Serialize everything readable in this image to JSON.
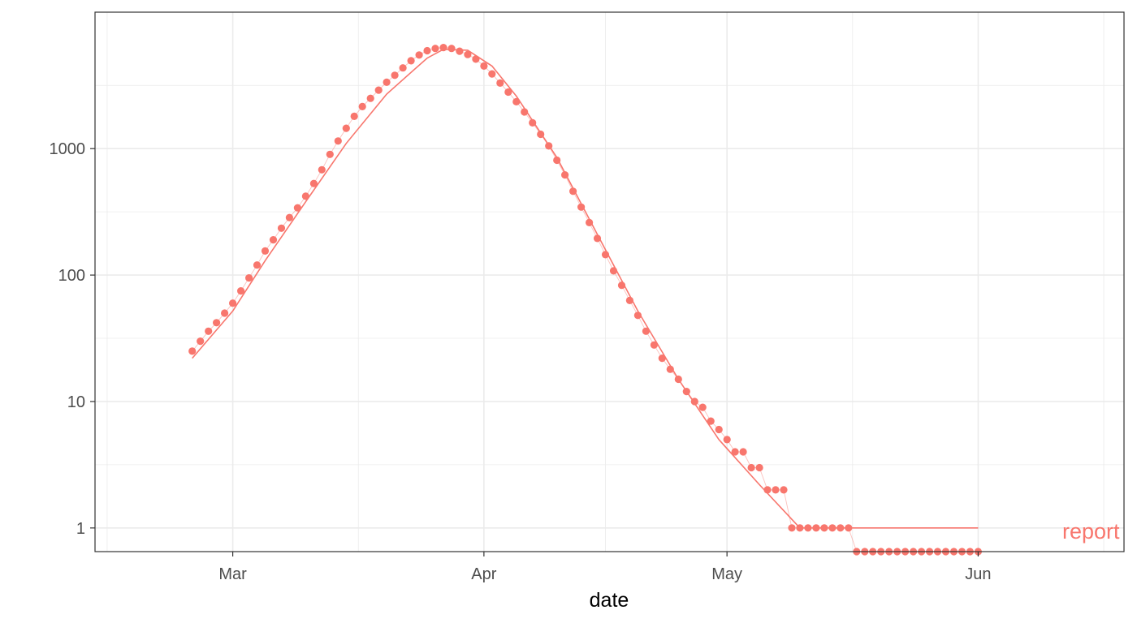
{
  "chart_data": {
    "type": "scatter",
    "xlabel": "date",
    "ylabel": "",
    "y_scale": "log10",
    "ylim": [
      0.65,
      12000
    ],
    "xlim": [
      "2020-02-13",
      "2020-06-19"
    ],
    "grid": true,
    "x_ticks": [
      {
        "date": "2020-03-01",
        "label": "Mar"
      },
      {
        "date": "2020-04-01",
        "label": "Apr"
      },
      {
        "date": "2020-05-01",
        "label": "May"
      },
      {
        "date": "2020-06-01",
        "label": "Jun"
      }
    ],
    "y_ticks": [
      {
        "value": 1,
        "label": "1"
      },
      {
        "value": 10,
        "label": "10"
      },
      {
        "value": 100,
        "label": "100"
      },
      {
        "value": 1000,
        "label": "1000"
      }
    ],
    "colors": {
      "series": "#f8766d",
      "grid": "#ebebeb",
      "panel_border": "#333333"
    },
    "series": [
      {
        "name": "report",
        "points": [
          [
            "2020-02-25",
            25
          ],
          [
            "2020-02-26",
            30
          ],
          [
            "2020-02-27",
            36
          ],
          [
            "2020-02-28",
            42
          ],
          [
            "2020-02-29",
            50
          ],
          [
            "2020-03-01",
            60
          ],
          [
            "2020-03-02",
            75
          ],
          [
            "2020-03-03",
            95
          ],
          [
            "2020-03-04",
            120
          ],
          [
            "2020-03-05",
            155
          ],
          [
            "2020-03-06",
            190
          ],
          [
            "2020-03-07",
            235
          ],
          [
            "2020-03-08",
            285
          ],
          [
            "2020-03-09",
            340
          ],
          [
            "2020-03-10",
            420
          ],
          [
            "2020-03-11",
            530
          ],
          [
            "2020-03-12",
            680
          ],
          [
            "2020-03-13",
            900
          ],
          [
            "2020-03-14",
            1150
          ],
          [
            "2020-03-15",
            1450
          ],
          [
            "2020-03-16",
            1800
          ],
          [
            "2020-03-17",
            2150
          ],
          [
            "2020-03-18",
            2500
          ],
          [
            "2020-03-19",
            2900
          ],
          [
            "2020-03-20",
            3350
          ],
          [
            "2020-03-21",
            3800
          ],
          [
            "2020-03-22",
            4350
          ],
          [
            "2020-03-23",
            4950
          ],
          [
            "2020-03-24",
            5500
          ],
          [
            "2020-03-25",
            5950
          ],
          [
            "2020-03-26",
            6200
          ],
          [
            "2020-03-27",
            6300
          ],
          [
            "2020-03-28",
            6200
          ],
          [
            "2020-03-29",
            5900
          ],
          [
            "2020-03-30",
            5550
          ],
          [
            "2020-03-31",
            5100
          ],
          [
            "2020-04-01",
            4500
          ],
          [
            "2020-04-02",
            3900
          ],
          [
            "2020-04-03",
            3300
          ],
          [
            "2020-04-04",
            2800
          ],
          [
            "2020-04-05",
            2350
          ],
          [
            "2020-04-06",
            1950
          ],
          [
            "2020-04-07",
            1600
          ],
          [
            "2020-04-08",
            1300
          ],
          [
            "2020-04-09",
            1050
          ],
          [
            "2020-04-10",
            810
          ],
          [
            "2020-04-11",
            620
          ],
          [
            "2020-04-12",
            460
          ],
          [
            "2020-04-13",
            345
          ],
          [
            "2020-04-14",
            260
          ],
          [
            "2020-04-15",
            195
          ],
          [
            "2020-04-16",
            145
          ],
          [
            "2020-04-17",
            108
          ],
          [
            "2020-04-18",
            83
          ],
          [
            "2020-04-19",
            63
          ],
          [
            "2020-04-20",
            48
          ],
          [
            "2020-04-21",
            36
          ],
          [
            "2020-04-22",
            28
          ],
          [
            "2020-04-23",
            22
          ],
          [
            "2020-04-24",
            18
          ],
          [
            "2020-04-25",
            15
          ],
          [
            "2020-04-26",
            12
          ],
          [
            "2020-04-27",
            10
          ],
          [
            "2020-04-28",
            9
          ],
          [
            "2020-04-29",
            7
          ],
          [
            "2020-04-30",
            6
          ],
          [
            "2020-05-01",
            5
          ],
          [
            "2020-05-02",
            4
          ],
          [
            "2020-05-03",
            4
          ],
          [
            "2020-05-04",
            3
          ],
          [
            "2020-05-05",
            3
          ],
          [
            "2020-05-06",
            2
          ],
          [
            "2020-05-07",
            2
          ],
          [
            "2020-05-08",
            2
          ],
          [
            "2020-05-09",
            1
          ],
          [
            "2020-05-10",
            1
          ],
          [
            "2020-05-11",
            1
          ],
          [
            "2020-05-12",
            1
          ],
          [
            "2020-05-13",
            1
          ],
          [
            "2020-05-14",
            1
          ],
          [
            "2020-05-15",
            1
          ],
          [
            "2020-05-16",
            1
          ],
          [
            "2020-05-17",
            0.65
          ],
          [
            "2020-05-18",
            0.65
          ],
          [
            "2020-05-19",
            0.65
          ],
          [
            "2020-05-20",
            0.65
          ],
          [
            "2020-05-21",
            0.65
          ],
          [
            "2020-05-22",
            0.65
          ],
          [
            "2020-05-23",
            0.65
          ],
          [
            "2020-05-24",
            0.65
          ],
          [
            "2020-05-25",
            0.65
          ],
          [
            "2020-05-26",
            0.65
          ],
          [
            "2020-05-27",
            0.65
          ],
          [
            "2020-05-28",
            0.65
          ],
          [
            "2020-05-29",
            0.65
          ],
          [
            "2020-05-30",
            0.65
          ],
          [
            "2020-05-31",
            0.65
          ],
          [
            "2020-06-01",
            0.65
          ]
        ],
        "fit_line": [
          [
            "2020-02-25",
            22
          ],
          [
            "2020-03-01",
            52
          ],
          [
            "2020-03-05",
            130
          ],
          [
            "2020-03-10",
            380
          ],
          [
            "2020-03-15",
            1100
          ],
          [
            "2020-03-20",
            2700
          ],
          [
            "2020-03-25",
            5200
          ],
          [
            "2020-03-27",
            6100
          ],
          [
            "2020-03-30",
            6000
          ],
          [
            "2020-04-02",
            4500
          ],
          [
            "2020-04-05",
            2600
          ],
          [
            "2020-04-10",
            850
          ],
          [
            "2020-04-15",
            210
          ],
          [
            "2020-04-20",
            52
          ],
          [
            "2020-04-25",
            15
          ],
          [
            "2020-04-30",
            5
          ],
          [
            "2020-05-05",
            2.2
          ],
          [
            "2020-05-10",
            1
          ],
          [
            "2020-06-01",
            1
          ]
        ]
      }
    ]
  }
}
